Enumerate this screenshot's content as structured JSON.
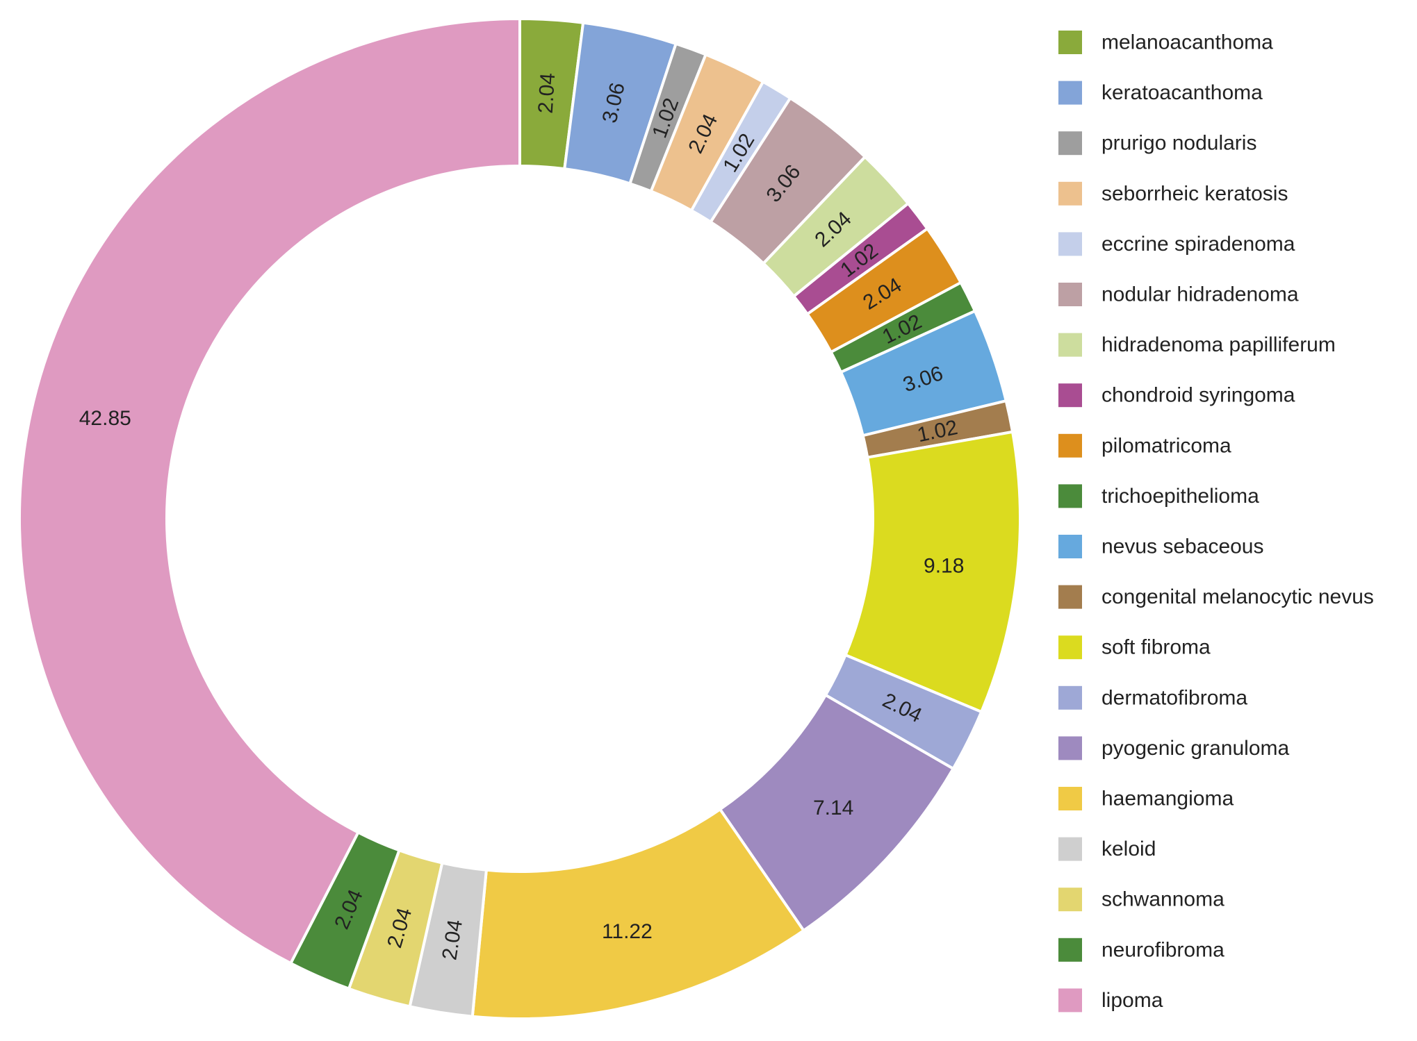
{
  "chart_data": {
    "type": "pie",
    "variant": "donut",
    "title": "",
    "start_angle_deg": 0,
    "direction": "clockwise",
    "legend_position": "right",
    "slices": [
      {
        "label": "melanoacanthoma",
        "value": 2.04,
        "value_label": "2.04",
        "color": "#8AAA3B"
      },
      {
        "label": "keratoacanthoma",
        "value": 3.06,
        "value_label": "3.06",
        "color": "#83A4D8"
      },
      {
        "label": "prurigo nodularis",
        "value": 1.02,
        "value_label": "1.02",
        "color": "#9E9E9E"
      },
      {
        "label": "seborrheic keratosis",
        "value": 2.04,
        "value_label": "2.04",
        "color": "#EDC18E"
      },
      {
        "label": "eccrine spiradenoma",
        "value": 1.02,
        "value_label": "1.02",
        "color": "#C4CFEA"
      },
      {
        "label": "nodular hidradenoma",
        "value": 3.06,
        "value_label": "3.06",
        "color": "#BDA0A4"
      },
      {
        "label": "hidradenoma papilliferum",
        "value": 2.04,
        "value_label": "2.04",
        "color": "#CDDD9E"
      },
      {
        "label": "chondroid syringoma",
        "value": 1.02,
        "value_label": "1.02",
        "color": "#A94D92"
      },
      {
        "label": "pilomatricoma",
        "value": 2.04,
        "value_label": "2.04",
        "color": "#DD8F1D"
      },
      {
        "label": "trichoepithelioma",
        "value": 1.02,
        "value_label": "1.02",
        "color": "#4B8B3B"
      },
      {
        "label": "nevus sebaceous",
        "value": 3.06,
        "value_label": "3.06",
        "color": "#66A9DE"
      },
      {
        "label": "congenital melanocytic nevus",
        "value": 1.02,
        "value_label": "1.02",
        "color": "#A37D4E"
      },
      {
        "label": "soft fibroma",
        "value": 9.18,
        "value_label": "9.18",
        "color": "#DBDB1F"
      },
      {
        "label": "dermatofibroma",
        "value": 2.04,
        "value_label": "2.04",
        "color": "#9EA8D6"
      },
      {
        "label": "pyogenic granuloma",
        "value": 7.14,
        "value_label": "7.14",
        "color": "#9E8ABF"
      },
      {
        "label": "haemangioma",
        "value": 11.22,
        "value_label": "11.22",
        "color": "#F0CA45"
      },
      {
        "label": "keloid",
        "value": 2.04,
        "value_label": "2.04",
        "color": "#CFCFCF"
      },
      {
        "label": "schwannoma",
        "value": 2.04,
        "value_label": "2.04",
        "color": "#E3D670"
      },
      {
        "label": "neurofibroma",
        "value": 2.04,
        "value_label": "2.04",
        "color": "#4B8B3B"
      },
      {
        "label": "lipoma",
        "value": 42.85,
        "value_label": "42.85",
        "color": "#DF9AC1"
      }
    ]
  }
}
